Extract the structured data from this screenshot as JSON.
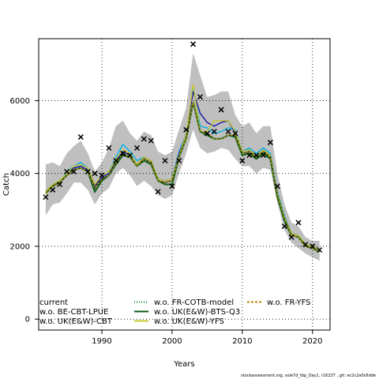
{
  "chart_data": {
    "type": "line",
    "xlabel": "Years",
    "ylabel": "Catch",
    "xlim": [
      1981,
      2022.5
    ],
    "ylim": [
      -300,
      7700
    ],
    "x_ticks": [
      1990,
      2000,
      2010,
      2020
    ],
    "y_ticks": [
      0,
      2000,
      4000,
      6000
    ],
    "grid": "dotted",
    "footnote": "stockassessment.org, sole7d_tbp_Day1, r16237 , git: ec2c2a0c6dde",
    "legend": [
      "current",
      "w.o. BE-CBT-LPUE",
      "w.o. UK(E&W)-CBT",
      "w.o. FR-COTB-model",
      "w.o. UK(E&W)-BTS-Q3",
      "w.o. UK(E&W)-YFS",
      "w.o. FR-YFS"
    ],
    "legend_placement": "bottom-left",
    "years": [
      1982,
      1983,
      1984,
      1985,
      1986,
      1987,
      1988,
      1989,
      1990,
      1991,
      1992,
      1993,
      1994,
      1995,
      1996,
      1997,
      1998,
      1999,
      2000,
      2001,
      2002,
      2003,
      2004,
      2005,
      2006,
      2007,
      2008,
      2009,
      2010,
      2011,
      2012,
      2013,
      2014,
      2015,
      2016,
      2017,
      2018,
      2019,
      2020,
      2021
    ],
    "observed": [
      3350,
      3550,
      3700,
      4050,
      4050,
      5000,
      4050,
      4000,
      3950,
      4700,
      4350,
      4550,
      4500,
      4700,
      4950,
      4900,
      3500,
      4350,
      3650,
      4350,
      5200,
      7550,
      6100,
      5100,
      5150,
      5750,
      5150,
      5100,
      4350,
      4500,
      4500,
      4500,
      4850,
      3650,
      2550,
      2250,
      2650,
      2050,
      2000,
      1900
    ],
    "band_upper": [
      4250,
      4300,
      4200,
      4550,
      4750,
      4900,
      4550,
      4050,
      4300,
      4700,
      5300,
      5450,
      5100,
      4900,
      5150,
      5050,
      4600,
      4500,
      4600,
      5200,
      5800,
      7300,
      6700,
      6100,
      6150,
      6250,
      6250,
      5600,
      5300,
      5400,
      5100,
      5300,
      5300,
      4000,
      3150,
      2650,
      2550,
      2250,
      2150,
      2150
    ],
    "band_lower": [
      2850,
      3150,
      3200,
      3450,
      3750,
      3750,
      3550,
      3150,
      3450,
      3600,
      4000,
      4150,
      3950,
      3650,
      3800,
      3650,
      3400,
      3300,
      3400,
      4000,
      4550,
      5200,
      4700,
      4550,
      4600,
      4700,
      4650,
      4400,
      4200,
      4200,
      4000,
      4150,
      4100,
      3200,
      2450,
      2100,
      1950,
      1800,
      1700,
      1600
    ],
    "series": [
      {
        "name": "current",
        "color": "#000000",
        "dash": "solid",
        "values": [
          3450,
          3650,
          3750,
          3950,
          4100,
          4150,
          4050,
          3600,
          3850,
          3950,
          4300,
          4550,
          4450,
          4200,
          4400,
          4300,
          3800,
          3750,
          3800,
          4450,
          4950,
          5950,
          5150,
          5100,
          4950,
          4950,
          5050,
          5050,
          4550,
          4600,
          4450,
          4600,
          4450,
          3400,
          2750,
          2300,
          2250,
          2000,
          1950,
          1850
        ]
      },
      {
        "name": "w.o. BE-CBT-LPUE",
        "color": "#1515a8",
        "dash": "solid",
        "values": [
          3500,
          3700,
          3750,
          4000,
          4150,
          4200,
          4100,
          3650,
          3900,
          4000,
          4350,
          4600,
          4500,
          4250,
          4450,
          4350,
          3850,
          3800,
          3850,
          4550,
          5050,
          6250,
          5650,
          5400,
          5300,
          5400,
          5450,
          5100,
          4600,
          4650,
          4500,
          4650,
          4500,
          3450,
          2800,
          2350,
          2300,
          2050,
          2000,
          1900
        ]
      },
      {
        "name": "w.o. UK(E&W)-CBT",
        "color": "#00b2ee",
        "dash": "solid",
        "values": [
          3500,
          3700,
          3750,
          4050,
          4200,
          4300,
          4150,
          3700,
          3950,
          4050,
          4450,
          4800,
          4600,
          4350,
          4450,
          4350,
          3850,
          3800,
          3850,
          4600,
          5050,
          6350,
          5300,
          5250,
          5100,
          5150,
          5250,
          5200,
          4600,
          4700,
          4550,
          4700,
          4550,
          3500,
          2850,
          2350,
          2300,
          2050,
          2000,
          1900
        ]
      },
      {
        "name": "w.o. FR-COTB-model",
        "color": "#0a7a2a",
        "dash": "dotted",
        "values": [
          3450,
          3650,
          3750,
          3950,
          4100,
          4150,
          4050,
          3600,
          3850,
          3950,
          4300,
          4550,
          4450,
          4200,
          4400,
          4300,
          3800,
          3750,
          3800,
          4450,
          4950,
          5950,
          5150,
          5100,
          4950,
          4950,
          5050,
          5050,
          4550,
          4600,
          4450,
          4600,
          4450,
          3400,
          2750,
          2300,
          2250,
          2000,
          1950,
          1850
        ]
      },
      {
        "name": "w.o. UK(E&W)-BTS-Q3",
        "color": "#0b5a14",
        "dash": "solid",
        "values": [
          3450,
          3650,
          3750,
          3950,
          4100,
          4150,
          4050,
          3500,
          3800,
          3950,
          4250,
          4500,
          4450,
          4200,
          4350,
          4250,
          3800,
          3700,
          3700,
          4450,
          4950,
          5950,
          5150,
          5050,
          4950,
          4950,
          5050,
          5000,
          4500,
          4550,
          4400,
          4550,
          4400,
          3350,
          2700,
          2300,
          2250,
          2000,
          1950,
          1850
        ]
      },
      {
        "name": "w.o. UK(E&W)-YFS",
        "color": "#c8c832",
        "dash": "solid",
        "values": [
          3500,
          3700,
          3800,
          4000,
          4200,
          4250,
          4150,
          3700,
          3950,
          4050,
          4400,
          4650,
          4550,
          4250,
          4450,
          4350,
          3850,
          3800,
          3850,
          4500,
          5050,
          6450,
          5150,
          5150,
          5450,
          5450,
          5450,
          5150,
          4600,
          4650,
          4500,
          4650,
          4500,
          3450,
          2800,
          2350,
          2300,
          2050,
          2000,
          1900
        ]
      },
      {
        "name": "w.o. FR-YFS",
        "color": "#b8860b",
        "dash": "dashed",
        "values": [
          3450,
          3650,
          3750,
          3950,
          4100,
          4150,
          4050,
          3600,
          3850,
          3950,
          4300,
          4550,
          4450,
          4200,
          4400,
          4300,
          3800,
          3750,
          3800,
          4450,
          4950,
          5950,
          5150,
          5100,
          4950,
          4950,
          5050,
          5050,
          4550,
          4600,
          4450,
          4600,
          4450,
          3400,
          2750,
          2300,
          2250,
          2000,
          1950,
          1850
        ]
      }
    ]
  }
}
